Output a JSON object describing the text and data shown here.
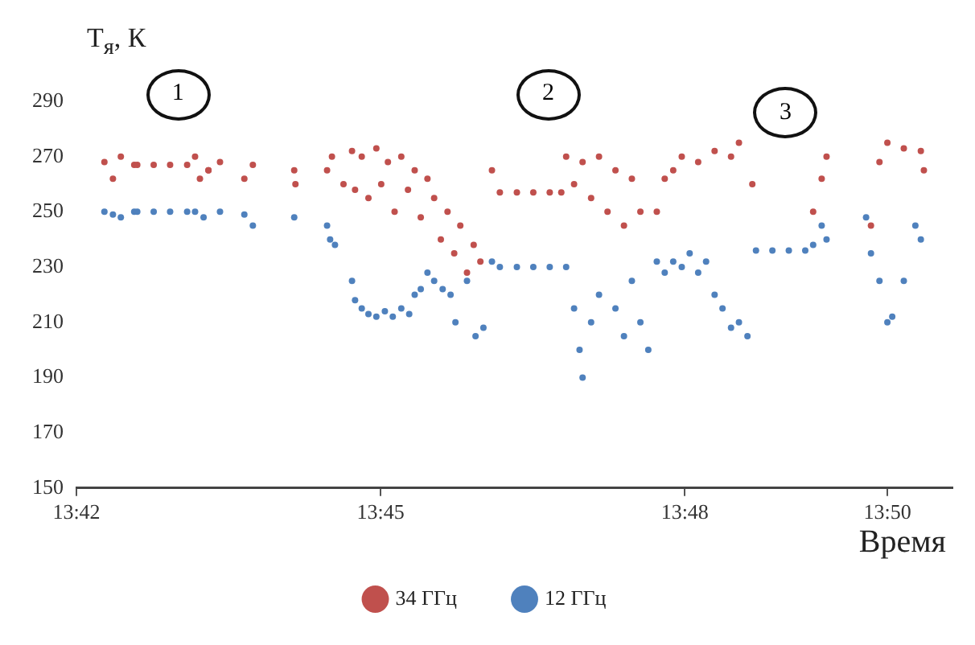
{
  "chart_data": {
    "type": "scatter",
    "xlabel": "Время",
    "ylabel": "T$_{я}$, К",
    "annotations": [
      "1",
      "2",
      "3"
    ],
    "xlim": [
      13.7,
      13.844
    ],
    "xticks": [
      {
        "value": 13.7,
        "label": "13:42"
      },
      {
        "value": 13.75,
        "label": "13:45"
      },
      {
        "value": 13.8,
        "label": "13:48"
      },
      {
        "value": 13.8333,
        "label": "13:50"
      }
    ],
    "ylim": [
      150,
      290
    ],
    "yticks": [
      150,
      170,
      190,
      210,
      230,
      250,
      270,
      290
    ],
    "grid": false,
    "legend": "bottom",
    "marker": "circle",
    "series": [
      {
        "name": "34 ГГц",
        "color": "#c0504d",
        "x": [
          13.7046,
          13.706,
          13.7073,
          13.7095,
          13.71,
          13.7127,
          13.7154,
          13.7182,
          13.7195,
          13.7203,
          13.7217,
          13.7236,
          13.7276,
          13.729,
          13.7358,
          13.736,
          13.7412,
          13.742,
          13.7439,
          13.7453,
          13.7458,
          13.7469,
          13.748,
          13.7493,
          13.7501,
          13.7512,
          13.7523,
          13.7534,
          13.7545,
          13.7556,
          13.7566,
          13.7577,
          13.7588,
          13.7599,
          13.761,
          13.7621,
          13.7631,
          13.7642,
          13.7653,
          13.7664,
          13.7683,
          13.7696,
          13.7724,
          13.7751,
          13.7778,
          13.7797,
          13.7805,
          13.7818,
          13.7832,
          13.7846,
          13.7859,
          13.7873,
          13.7886,
          13.79,
          13.7913,
          13.7927,
          13.7954,
          13.7967,
          13.7981,
          13.7995,
          13.8022,
          13.8049,
          13.8076,
          13.8089,
          13.8111,
          13.7217,
          13.8211,
          13.8225,
          13.8233,
          13.8306,
          13.832,
          13.8333,
          13.836,
          13.8388,
          13.8393
        ],
        "values": [
          268,
          262,
          270,
          267,
          267,
          267,
          267,
          267,
          270,
          262,
          265,
          268,
          262,
          267,
          265,
          260,
          265,
          270,
          260,
          272,
          258,
          270,
          255,
          273,
          260,
          268,
          250,
          270,
          258,
          265,
          248,
          262,
          255,
          240,
          250,
          235,
          245,
          228,
          238,
          232,
          265,
          257,
          257,
          257,
          257,
          257,
          270,
          260,
          268,
          255,
          270,
          250,
          265,
          245,
          262,
          250,
          250,
          262,
          265,
          270,
          268,
          272,
          270,
          275,
          260,
          265,
          250,
          262,
          270,
          245,
          268,
          275,
          273,
          272,
          265
        ]
      },
      {
        "name": "12 ГГц",
        "color": "#4f81bd",
        "x": [
          13.7046,
          13.706,
          13.7073,
          13.7095,
          13.71,
          13.7127,
          13.7154,
          13.7182,
          13.7195,
          13.7209,
          13.7236,
          13.7276,
          13.729,
          13.7358,
          13.7412,
          13.7417,
          13.7425,
          13.7453,
          13.7458,
          13.7469,
          13.748,
          13.7493,
          13.7507,
          13.752,
          13.7534,
          13.7547,
          13.7556,
          13.7566,
          13.7577,
          13.7588,
          13.7602,
          13.7615,
          13.7623,
          13.7642,
          13.7656,
          13.7669,
          13.7683,
          13.7696,
          13.7724,
          13.7751,
          13.7778,
          13.7805,
          13.7818,
          13.7827,
          13.7832,
          13.7846,
          13.7859,
          13.7886,
          13.79,
          13.7913,
          13.7927,
          13.794,
          13.7954,
          13.7967,
          13.7981,
          13.7995,
          13.8008,
          13.8022,
          13.8035,
          13.8049,
          13.8062,
          13.8076,
          13.8089,
          13.8103,
          13.8117,
          13.8144,
          13.8171,
          13.8198,
          13.8211,
          13.8225,
          13.8233,
          13.8298,
          13.8306,
          13.832,
          13.8333,
          13.8341,
          13.836,
          13.8379,
          13.8388
        ],
        "values": [
          250,
          249,
          248,
          250,
          250,
          250,
          250,
          250,
          250,
          248,
          250,
          249,
          245,
          248,
          245,
          240,
          238,
          225,
          218,
          215,
          213,
          212,
          214,
          212,
          215,
          213,
          220,
          222,
          228,
          225,
          222,
          220,
          210,
          225,
          205,
          208,
          232,
          230,
          230,
          230,
          230,
          230,
          215,
          200,
          190,
          210,
          220,
          215,
          205,
          225,
          210,
          200,
          232,
          228,
          232,
          230,
          235,
          228,
          232,
          220,
          215,
          208,
          210,
          205,
          236,
          236,
          236,
          236,
          238,
          245,
          240,
          248,
          235,
          225,
          210,
          212,
          225,
          245,
          240
        ]
      }
    ]
  }
}
